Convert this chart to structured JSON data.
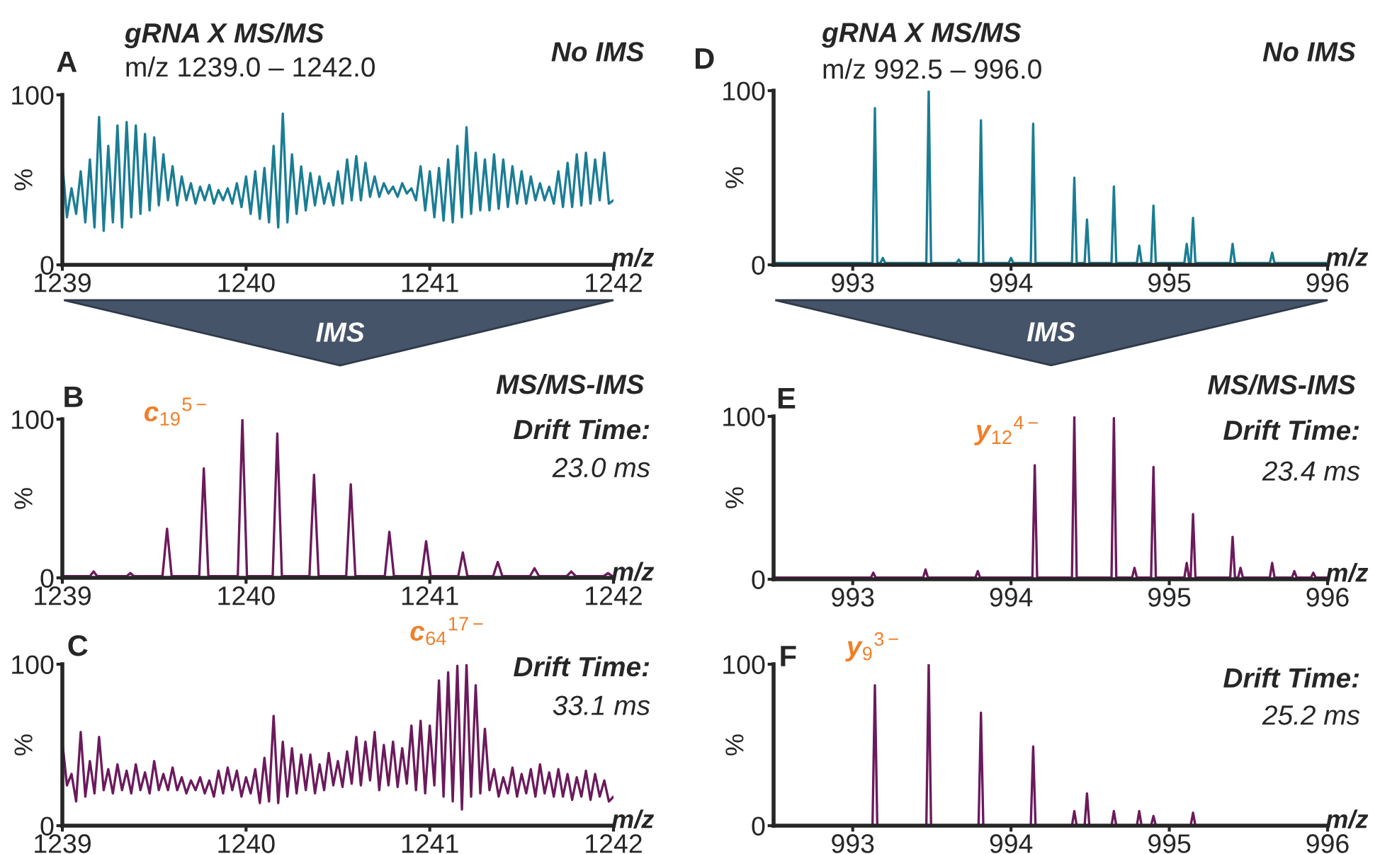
{
  "chart_data": [
    {
      "type": "line",
      "title": "gRNA X MS/MS",
      "subtitle": "m/z 1239.0 – 1242.0",
      "xlabel": "m/z",
      "ylabel": "%",
      "xlim": [
        1239,
        1242
      ],
      "ylim": [
        0,
        100
      ],
      "xticks": [
        1239,
        1240,
        1241,
        1242
      ],
      "yticks": [
        0,
        100
      ],
      "annotations": [
        "A",
        "No IMS",
        "IMS"
      ],
      "series": [
        {
          "color": "#1a7d94",
          "x": [
            1239,
            1239.025,
            1239.05,
            1239.075,
            1239.1,
            1239.125,
            1239.15,
            1239.175,
            1239.2,
            1239.225,
            1239.25,
            1239.275,
            1239.3,
            1239.325,
            1239.35,
            1239.375,
            1239.4,
            1239.425,
            1239.45,
            1239.475,
            1239.5,
            1239.525,
            1239.55,
            1239.575,
            1239.6,
            1239.625,
            1239.65,
            1239.675,
            1239.7,
            1239.725,
            1239.75,
            1239.775,
            1239.8,
            1239.825,
            1239.85,
            1239.875,
            1239.9,
            1239.925,
            1239.95,
            1239.975,
            1240,
            1240.025,
            1240.05,
            1240.075,
            1240.1,
            1240.125,
            1240.15,
            1240.175,
            1240.2,
            1240.225,
            1240.25,
            1240.275,
            1240.3,
            1240.325,
            1240.35,
            1240.375,
            1240.4,
            1240.425,
            1240.45,
            1240.475,
            1240.5,
            1240.525,
            1240.55,
            1240.575,
            1240.6,
            1240.625,
            1240.65,
            1240.675,
            1240.7,
            1240.725,
            1240.75,
            1240.775,
            1240.8,
            1240.825,
            1240.85,
            1240.875,
            1240.9,
            1240.925,
            1240.95,
            1240.975,
            1241,
            1241.025,
            1241.05,
            1241.075,
            1241.1,
            1241.125,
            1241.15,
            1241.175,
            1241.2,
            1241.225,
            1241.25,
            1241.275,
            1241.3,
            1241.325,
            1241.35,
            1241.375,
            1241.4,
            1241.425,
            1241.45,
            1241.475,
            1241.5,
            1241.525,
            1241.55,
            1241.575,
            1241.6,
            1241.625,
            1241.65,
            1241.675,
            1241.7,
            1241.725,
            1241.75,
            1241.775,
            1241.8,
            1241.825,
            1241.85,
            1241.875,
            1241.9,
            1241.925,
            1241.95,
            1241.975,
            1242
          ],
          "values": [
            60,
            28,
            45,
            30,
            55,
            25,
            62,
            22,
            87,
            20,
            70,
            25,
            82,
            22,
            84,
            28,
            82,
            30,
            77,
            32,
            75,
            35,
            65,
            38,
            58,
            35,
            52,
            38,
            48,
            36,
            46,
            38,
            47,
            36,
            44,
            38,
            45,
            36,
            48,
            34,
            52,
            30,
            55,
            27,
            57,
            25,
            70,
            22,
            89,
            25,
            65,
            30,
            58,
            32,
            54,
            35,
            52,
            36,
            48,
            35,
            55,
            36,
            62,
            38,
            64,
            38,
            60,
            40,
            52,
            40,
            48,
            42,
            46,
            40,
            48,
            42,
            45,
            38,
            58,
            32,
            55,
            28,
            57,
            26,
            62,
            25,
            70,
            28,
            81,
            30,
            66,
            32,
            62,
            32,
            65,
            33,
            62,
            34,
            58,
            36,
            55,
            36,
            52,
            38,
            48,
            38,
            46,
            36,
            55,
            34,
            60,
            34,
            65,
            35,
            66,
            36,
            62,
            38,
            66,
            36,
            38
          ]
        }
      ]
    },
    {
      "type": "line",
      "title": "gRNA X MS/MS",
      "subtitle": "m/z 992.5 – 996.0",
      "xlabel": "m/z",
      "ylabel": "%",
      "xlim": [
        992.5,
        996
      ],
      "ylim": [
        0,
        100
      ],
      "xticks": [
        993,
        994,
        995,
        996
      ],
      "yticks": [
        0,
        100
      ],
      "annotations": [
        "D",
        "No IMS",
        "IMS"
      ],
      "series": [
        {
          "color": "#1a7d94",
          "x": [
            992.5,
            993.125,
            993.14,
            993.155,
            993.175,
            993.19,
            993.205,
            993.465,
            993.48,
            993.495,
            993.655,
            993.67,
            993.685,
            993.795,
            993.81,
            993.825,
            993.985,
            994,
            994.015,
            994.125,
            994.14,
            994.155,
            994.385,
            994.4,
            994.415,
            994.465,
            994.48,
            994.495,
            994.635,
            994.65,
            994.665,
            994.795,
            994.81,
            994.825,
            994.885,
            994.9,
            994.915,
            995.095,
            995.11,
            995.125,
            995.135,
            995.15,
            995.165,
            995.385,
            995.4,
            995.415,
            995.635,
            995.65,
            995.665,
            996
          ],
          "values": [
            1,
            1,
            90,
            1,
            1,
            4,
            1,
            1,
            100,
            1,
            1,
            3,
            1,
            1,
            83,
            1,
            1,
            4,
            1,
            1,
            81,
            1,
            1,
            50,
            1,
            1,
            26,
            1,
            1,
            45,
            1,
            1,
            11,
            1,
            1,
            34,
            1,
            1,
            12,
            1,
            1,
            27,
            1,
            1,
            12,
            1,
            1,
            7,
            1,
            1
          ]
        }
      ]
    },
    {
      "type": "line",
      "xlabel": "m/z",
      "ylabel": "%",
      "xlim": [
        1239,
        1242
      ],
      "ylim": [
        0,
        100
      ],
      "xticks": [
        1239,
        1240,
        1241,
        1242
      ],
      "yticks": [
        0,
        100
      ],
      "annotations": [
        "B",
        "MS/MS-IMS",
        "Drift Time:",
        "23.0 ms",
        {
          "text": "c$_{19}$$^{5−}$",
          "x": 1239.98,
          "y": 100
        }
      ],
      "series": [
        {
          "color": "#6b1a5c",
          "x": [
            1239,
            1239.15,
            1239.17,
            1239.19,
            1239.35,
            1239.37,
            1239.39,
            1239.545,
            1239.57,
            1239.595,
            1239.745,
            1239.77,
            1239.795,
            1239.955,
            1239.98,
            1240.005,
            1240.145,
            1240.17,
            1240.195,
            1240.345,
            1240.37,
            1240.395,
            1240.545,
            1240.57,
            1240.595,
            1240.755,
            1240.78,
            1240.805,
            1240.955,
            1240.98,
            1241.005,
            1241.155,
            1241.18,
            1241.205,
            1241.345,
            1241.37,
            1241.395,
            1241.545,
            1241.57,
            1241.595,
            1241.745,
            1241.77,
            1241.795,
            1241.945,
            1241.97,
            1241.995,
            1242
          ],
          "values": [
            1,
            1,
            4,
            1,
            1,
            3,
            1,
            1,
            31,
            1,
            1,
            69,
            1,
            1,
            100,
            1,
            1,
            91,
            1,
            1,
            65,
            1,
            1,
            59,
            1,
            1,
            29,
            1,
            1,
            23,
            1,
            1,
            16,
            1,
            1,
            10,
            1,
            1,
            6,
            1,
            1,
            4,
            1,
            1,
            3,
            1,
            1
          ]
        }
      ]
    },
    {
      "type": "line",
      "xlabel": "m/z",
      "ylabel": "%",
      "xlim": [
        992.5,
        996
      ],
      "ylim": [
        0,
        100
      ],
      "xticks": [
        993,
        994,
        995,
        996
      ],
      "yticks": [
        0,
        100
      ],
      "annotations": [
        "E",
        "MS/MS-IMS",
        "Drift Time:",
        "23.4 ms",
        {
          "text": "y$_{12}$$^{4−}$",
          "x": 994.15,
          "y": 70
        }
      ],
      "series": [
        {
          "color": "#6b1a5c",
          "x": [
            992.5,
            993.115,
            993.13,
            993.145,
            993.445,
            993.46,
            993.475,
            993.775,
            993.79,
            993.805,
            994.135,
            994.15,
            994.165,
            994.385,
            994.4,
            994.415,
            994.635,
            994.65,
            994.665,
            994.765,
            994.78,
            994.795,
            994.885,
            994.9,
            994.915,
            995.095,
            995.11,
            995.125,
            995.135,
            995.15,
            995.165,
            995.385,
            995.4,
            995.415,
            995.435,
            995.45,
            995.465,
            995.635,
            995.65,
            995.665,
            995.775,
            995.79,
            995.805,
            995.895,
            995.91,
            995.925,
            996
          ],
          "values": [
            1,
            1,
            4,
            1,
            1,
            6,
            1,
            1,
            5,
            1,
            1,
            70,
            1,
            1,
            100,
            1,
            1,
            99,
            1,
            1,
            7,
            1,
            1,
            69,
            1,
            1,
            10,
            1,
            1,
            40,
            1,
            1,
            26,
            1,
            1,
            7,
            1,
            1,
            10,
            1,
            1,
            5,
            1,
            1,
            4,
            1,
            1
          ]
        }
      ]
    },
    {
      "type": "line",
      "xlabel": "m/z",
      "ylabel": "%",
      "xlim": [
        1239,
        1242
      ],
      "ylim": [
        0,
        100
      ],
      "xticks": [
        1239,
        1240,
        1241,
        1242
      ],
      "yticks": [
        0,
        100
      ],
      "annotations": [
        "C",
        "Drift Time:",
        "33.1 ms",
        {
          "text": "c$_{64}$$^{17−}$",
          "x": 1241.2,
          "y": 100
        }
      ],
      "series": [
        {
          "color": "#6b1a5c",
          "x": [
            1239,
            1239.025,
            1239.05,
            1239.075,
            1239.1,
            1239.125,
            1239.15,
            1239.175,
            1239.2,
            1239.225,
            1239.25,
            1239.275,
            1239.3,
            1239.325,
            1239.35,
            1239.375,
            1239.4,
            1239.425,
            1239.45,
            1239.475,
            1239.5,
            1239.525,
            1239.55,
            1239.575,
            1239.6,
            1239.625,
            1239.65,
            1239.675,
            1239.7,
            1239.725,
            1239.75,
            1239.775,
            1239.8,
            1239.825,
            1239.85,
            1239.875,
            1239.9,
            1239.925,
            1239.95,
            1239.975,
            1240,
            1240.025,
            1240.05,
            1240.075,
            1240.1,
            1240.125,
            1240.15,
            1240.175,
            1240.2,
            1240.225,
            1240.25,
            1240.275,
            1240.3,
            1240.325,
            1240.35,
            1240.375,
            1240.4,
            1240.425,
            1240.45,
            1240.475,
            1240.5,
            1240.525,
            1240.55,
            1240.575,
            1240.6,
            1240.625,
            1240.65,
            1240.675,
            1240.7,
            1240.725,
            1240.75,
            1240.775,
            1240.8,
            1240.825,
            1240.85,
            1240.875,
            1240.9,
            1240.925,
            1240.95,
            1240.975,
            1241,
            1241.025,
            1241.05,
            1241.075,
            1241.1,
            1241.125,
            1241.15,
            1241.175,
            1241.2,
            1241.225,
            1241.25,
            1241.275,
            1241.3,
            1241.325,
            1241.35,
            1241.375,
            1241.4,
            1241.425,
            1241.45,
            1241.475,
            1241.5,
            1241.525,
            1241.55,
            1241.575,
            1241.6,
            1241.625,
            1241.65,
            1241.675,
            1241.7,
            1241.725,
            1241.75,
            1241.775,
            1241.8,
            1241.825,
            1241.85,
            1241.875,
            1241.9,
            1241.925,
            1241.95,
            1241.975,
            1242
          ],
          "values": [
            52,
            25,
            32,
            15,
            58,
            18,
            40,
            20,
            55,
            22,
            35,
            20,
            38,
            22,
            34,
            20,
            38,
            22,
            33,
            20,
            40,
            22,
            32,
            22,
            36,
            22,
            30,
            20,
            28,
            22,
            30,
            20,
            28,
            18,
            34,
            20,
            36,
            22,
            34,
            18,
            30,
            20,
            35,
            14,
            42,
            15,
            68,
            14,
            52,
            18,
            48,
            20,
            44,
            22,
            44,
            20,
            38,
            22,
            45,
            25,
            40,
            24,
            46,
            26,
            55,
            25,
            52,
            28,
            58,
            22,
            50,
            25,
            52,
            24,
            48,
            26,
            62,
            22,
            65,
            20,
            62,
            25,
            90,
            18,
            95,
            15,
            99,
            10,
            100,
            18,
            87,
            20,
            60,
            22,
            35,
            18,
            30,
            20,
            36,
            18,
            32,
            20,
            35,
            18,
            38,
            20,
            33,
            18,
            35,
            18,
            32,
            16,
            30,
            18,
            34,
            16,
            32,
            18,
            28,
            15,
            18
          ]
        }
      ]
    },
    {
      "type": "line",
      "xlabel": "m/z",
      "ylabel": "%",
      "xlim": [
        992.5,
        996
      ],
      "ylim": [
        0,
        100
      ],
      "xticks": [
        993,
        994,
        995,
        996
      ],
      "yticks": [
        0,
        100
      ],
      "annotations": [
        "F",
        "Drift Time:",
        "25.2 ms",
        {
          "text": "y$_{9}$$^{3−}$",
          "x": 993.14,
          "y": 87
        }
      ],
      "series": [
        {
          "color": "#6b1a5c",
          "x": [
            992.5,
            993.125,
            993.14,
            993.155,
            993.465,
            993.48,
            993.495,
            993.795,
            993.81,
            993.825,
            994.125,
            994.14,
            994.155,
            994.385,
            994.4,
            994.415,
            994.465,
            994.48,
            994.495,
            994.635,
            994.65,
            994.665,
            994.795,
            994.81,
            994.825,
            994.885,
            994.9,
            994.915,
            995.135,
            995.15,
            995.165,
            996
          ],
          "values": [
            0,
            0,
            87,
            0,
            0,
            100,
            0,
            0,
            70,
            0,
            0,
            49,
            0,
            0,
            9,
            0,
            0,
            20,
            0,
            0,
            9,
            0,
            0,
            9,
            0,
            0,
            6,
            0,
            0,
            8,
            0,
            0
          ]
        }
      ]
    }
  ]
}
